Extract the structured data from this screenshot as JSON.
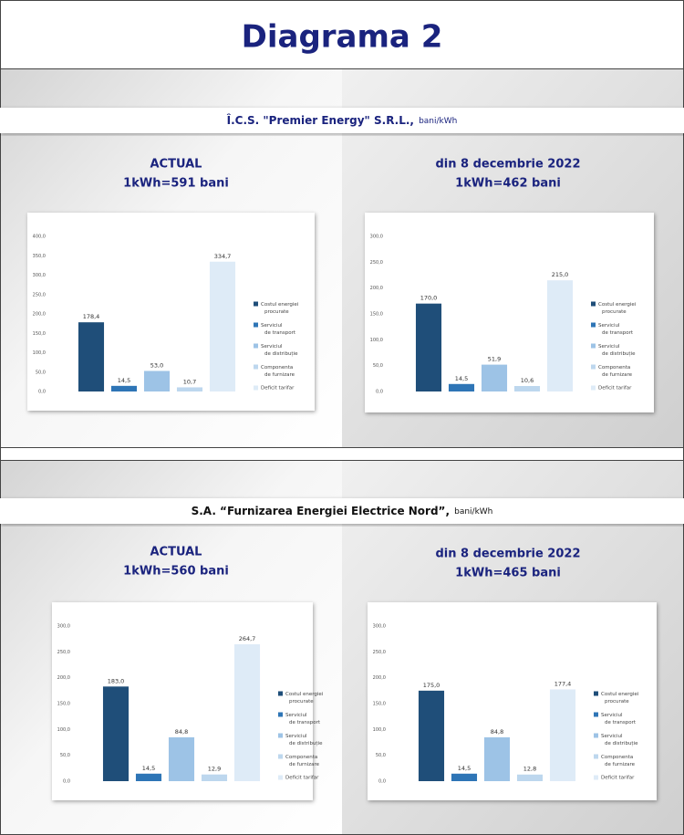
{
  "title": "Diagrama 2",
  "sections": [
    {
      "company": "Î.C.S. \"Premier Energy\" S.R.L.,",
      "unit": "bani/kWh"
    },
    {
      "company": "S.A. “Furnizarea Energiei Electrice Nord”,",
      "unit": "bani/kWh"
    }
  ],
  "chart_data": [
    {
      "type": "bar",
      "title": "ACTUAL",
      "subtitle": "1kWh=591 bani",
      "categories": [
        "Costul energiei procurate",
        "Serviciul de transport",
        "Serviciul de distribuție",
        "Componenta de furnizare",
        "Deficit tarifar"
      ],
      "colors": [
        "#1f4e79",
        "#2e75b6",
        "#9dc3e6",
        "#bdd7ee",
        "#deebf7"
      ],
      "values": [
        178.4,
        14.5,
        53.0,
        10.7,
        334.7
      ],
      "value_labels": [
        "178,4",
        "14,5",
        "53,0",
        "10,7",
        "334,7"
      ],
      "ylim": [
        0,
        400
      ],
      "yticks": [
        {
          "value": 0,
          "label": "0,0"
        },
        {
          "value": 50,
          "label": "50,0"
        },
        {
          "value": 100,
          "label": "100,0"
        },
        {
          "value": 150,
          "label": "150,0"
        },
        {
          "value": 200,
          "label": "200,0"
        },
        {
          "value": 250,
          "label": "250,0"
        },
        {
          "value": 300,
          "label": "300,0"
        },
        {
          "value": 350,
          "label": "350,0"
        },
        {
          "value": 400,
          "label": "400,0"
        }
      ],
      "legend": "right"
    },
    {
      "type": "bar",
      "title": "din 8 decembrie 2022",
      "subtitle": "1kWh=462 bani",
      "categories": [
        "Costul energiei procurate",
        "Serviciul de transport",
        "Serviciul de distribuție",
        "Componenta de furnizare",
        "Deficit tarifar"
      ],
      "colors": [
        "#1f4e79",
        "#2e75b6",
        "#9dc3e6",
        "#bdd7ee",
        "#deebf7"
      ],
      "values": [
        170.0,
        14.5,
        51.9,
        10.6,
        215.0
      ],
      "value_labels": [
        "170,0",
        "14,5",
        "51,9",
        "10,6",
        "215,0"
      ],
      "ylim": [
        0,
        300
      ],
      "yticks": [
        {
          "value": 0,
          "label": "0,0"
        },
        {
          "value": 50,
          "label": "50,0"
        },
        {
          "value": 100,
          "label": "100,0"
        },
        {
          "value": 150,
          "label": "150,0"
        },
        {
          "value": 200,
          "label": "200,0"
        },
        {
          "value": 250,
          "label": "250,0"
        },
        {
          "value": 300,
          "label": "300,0"
        }
      ],
      "legend": "right"
    },
    {
      "type": "bar",
      "title": "ACTUAL",
      "subtitle": "1kWh=560 bani",
      "categories": [
        "Costul energiei procurate",
        "Serviciul de transport",
        "Serviciul de distribuție",
        "Componenta de furnizare",
        "Deficit tarifar"
      ],
      "colors": [
        "#1f4e79",
        "#2e75b6",
        "#9dc3e6",
        "#bdd7ee",
        "#deebf7"
      ],
      "values": [
        183.0,
        14.5,
        84.8,
        12.9,
        264.7
      ],
      "value_labels": [
        "183,0",
        "14,5",
        "84,8",
        "12,9",
        "264,7"
      ],
      "ylim": [
        0,
        300
      ],
      "yticks": [
        {
          "value": 0,
          "label": "0,0"
        },
        {
          "value": 50,
          "label": "50,0"
        },
        {
          "value": 100,
          "label": "100,0"
        },
        {
          "value": 150,
          "label": "150,0"
        },
        {
          "value": 200,
          "label": "200,0"
        },
        {
          "value": 250,
          "label": "250,0"
        },
        {
          "value": 300,
          "label": "300,0"
        }
      ],
      "legend": "right"
    },
    {
      "type": "bar",
      "title": "din 8 decembrie 2022",
      "subtitle": "1kWh=465 bani",
      "categories": [
        "Costul energiei procurate",
        "Serviciul de transport",
        "Serviciul de distribuție",
        "Componenta de furnizare",
        "Deficit tarifar"
      ],
      "colors": [
        "#1f4e79",
        "#2e75b6",
        "#9dc3e6",
        "#bdd7ee",
        "#deebf7"
      ],
      "values": [
        175.0,
        14.5,
        84.8,
        12.8,
        177.4
      ],
      "value_labels": [
        "175,0",
        "14,5",
        "84,8",
        "12,8",
        "177,4"
      ],
      "ylim": [
        0,
        300
      ],
      "yticks": [
        {
          "value": 0,
          "label": "0,0"
        },
        {
          "value": 50,
          "label": "50,0"
        },
        {
          "value": 100,
          "label": "100,0"
        },
        {
          "value": 150,
          "label": "150,0"
        },
        {
          "value": 200,
          "label": "200,0"
        },
        {
          "value": 250,
          "label": "250,0"
        },
        {
          "value": 300,
          "label": "300,0"
        }
      ],
      "legend": "right"
    }
  ]
}
